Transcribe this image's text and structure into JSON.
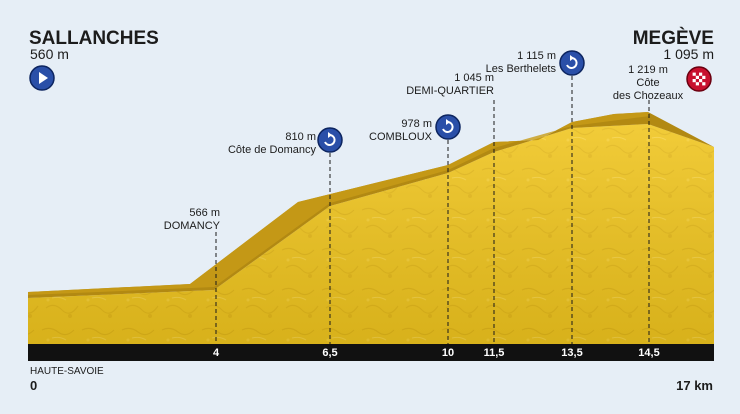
{
  "start": {
    "name": "SALLANCHES",
    "altitude": "560 m"
  },
  "finish": {
    "name": "MEGÈVE",
    "altitude": "1 095 m"
  },
  "waypoints": [
    {
      "km_label": "4",
      "altitude": "566 m",
      "name": "DOMANCY",
      "icon": "none"
    },
    {
      "km_label": "6,5",
      "altitude": "810 m",
      "name": "Côte de Domancy",
      "icon": "timing-icon"
    },
    {
      "km_label": "10",
      "altitude": "978 m",
      "name": "COMBLOUX",
      "icon": "timing-icon"
    },
    {
      "km_label": "11,5",
      "altitude": "1 045 m",
      "name": "DEMI-QUARTIER",
      "icon": "none"
    },
    {
      "km_label": "13,5",
      "altitude": "1 115 m",
      "name": "Les Berthelets",
      "icon": "timing-icon"
    },
    {
      "km_label": "14,5",
      "altitude": "1 219 m",
      "name": "Côte des Chozeaux",
      "name_lines": [
        "Côte",
        "des Chozeaux"
      ],
      "icon": "finish-flag-icon"
    }
  ],
  "footer": {
    "region": "HAUTE-SAVOIE",
    "start_km": "0",
    "total_distance": "17 km"
  },
  "colors": {
    "terrain": "#f0c51e",
    "terrain_dark": "#b28912",
    "background": "#e6eef6",
    "icon_blue": "#2a4fa8",
    "finish_red": "#c8102e",
    "km_bar": "#111111"
  }
}
